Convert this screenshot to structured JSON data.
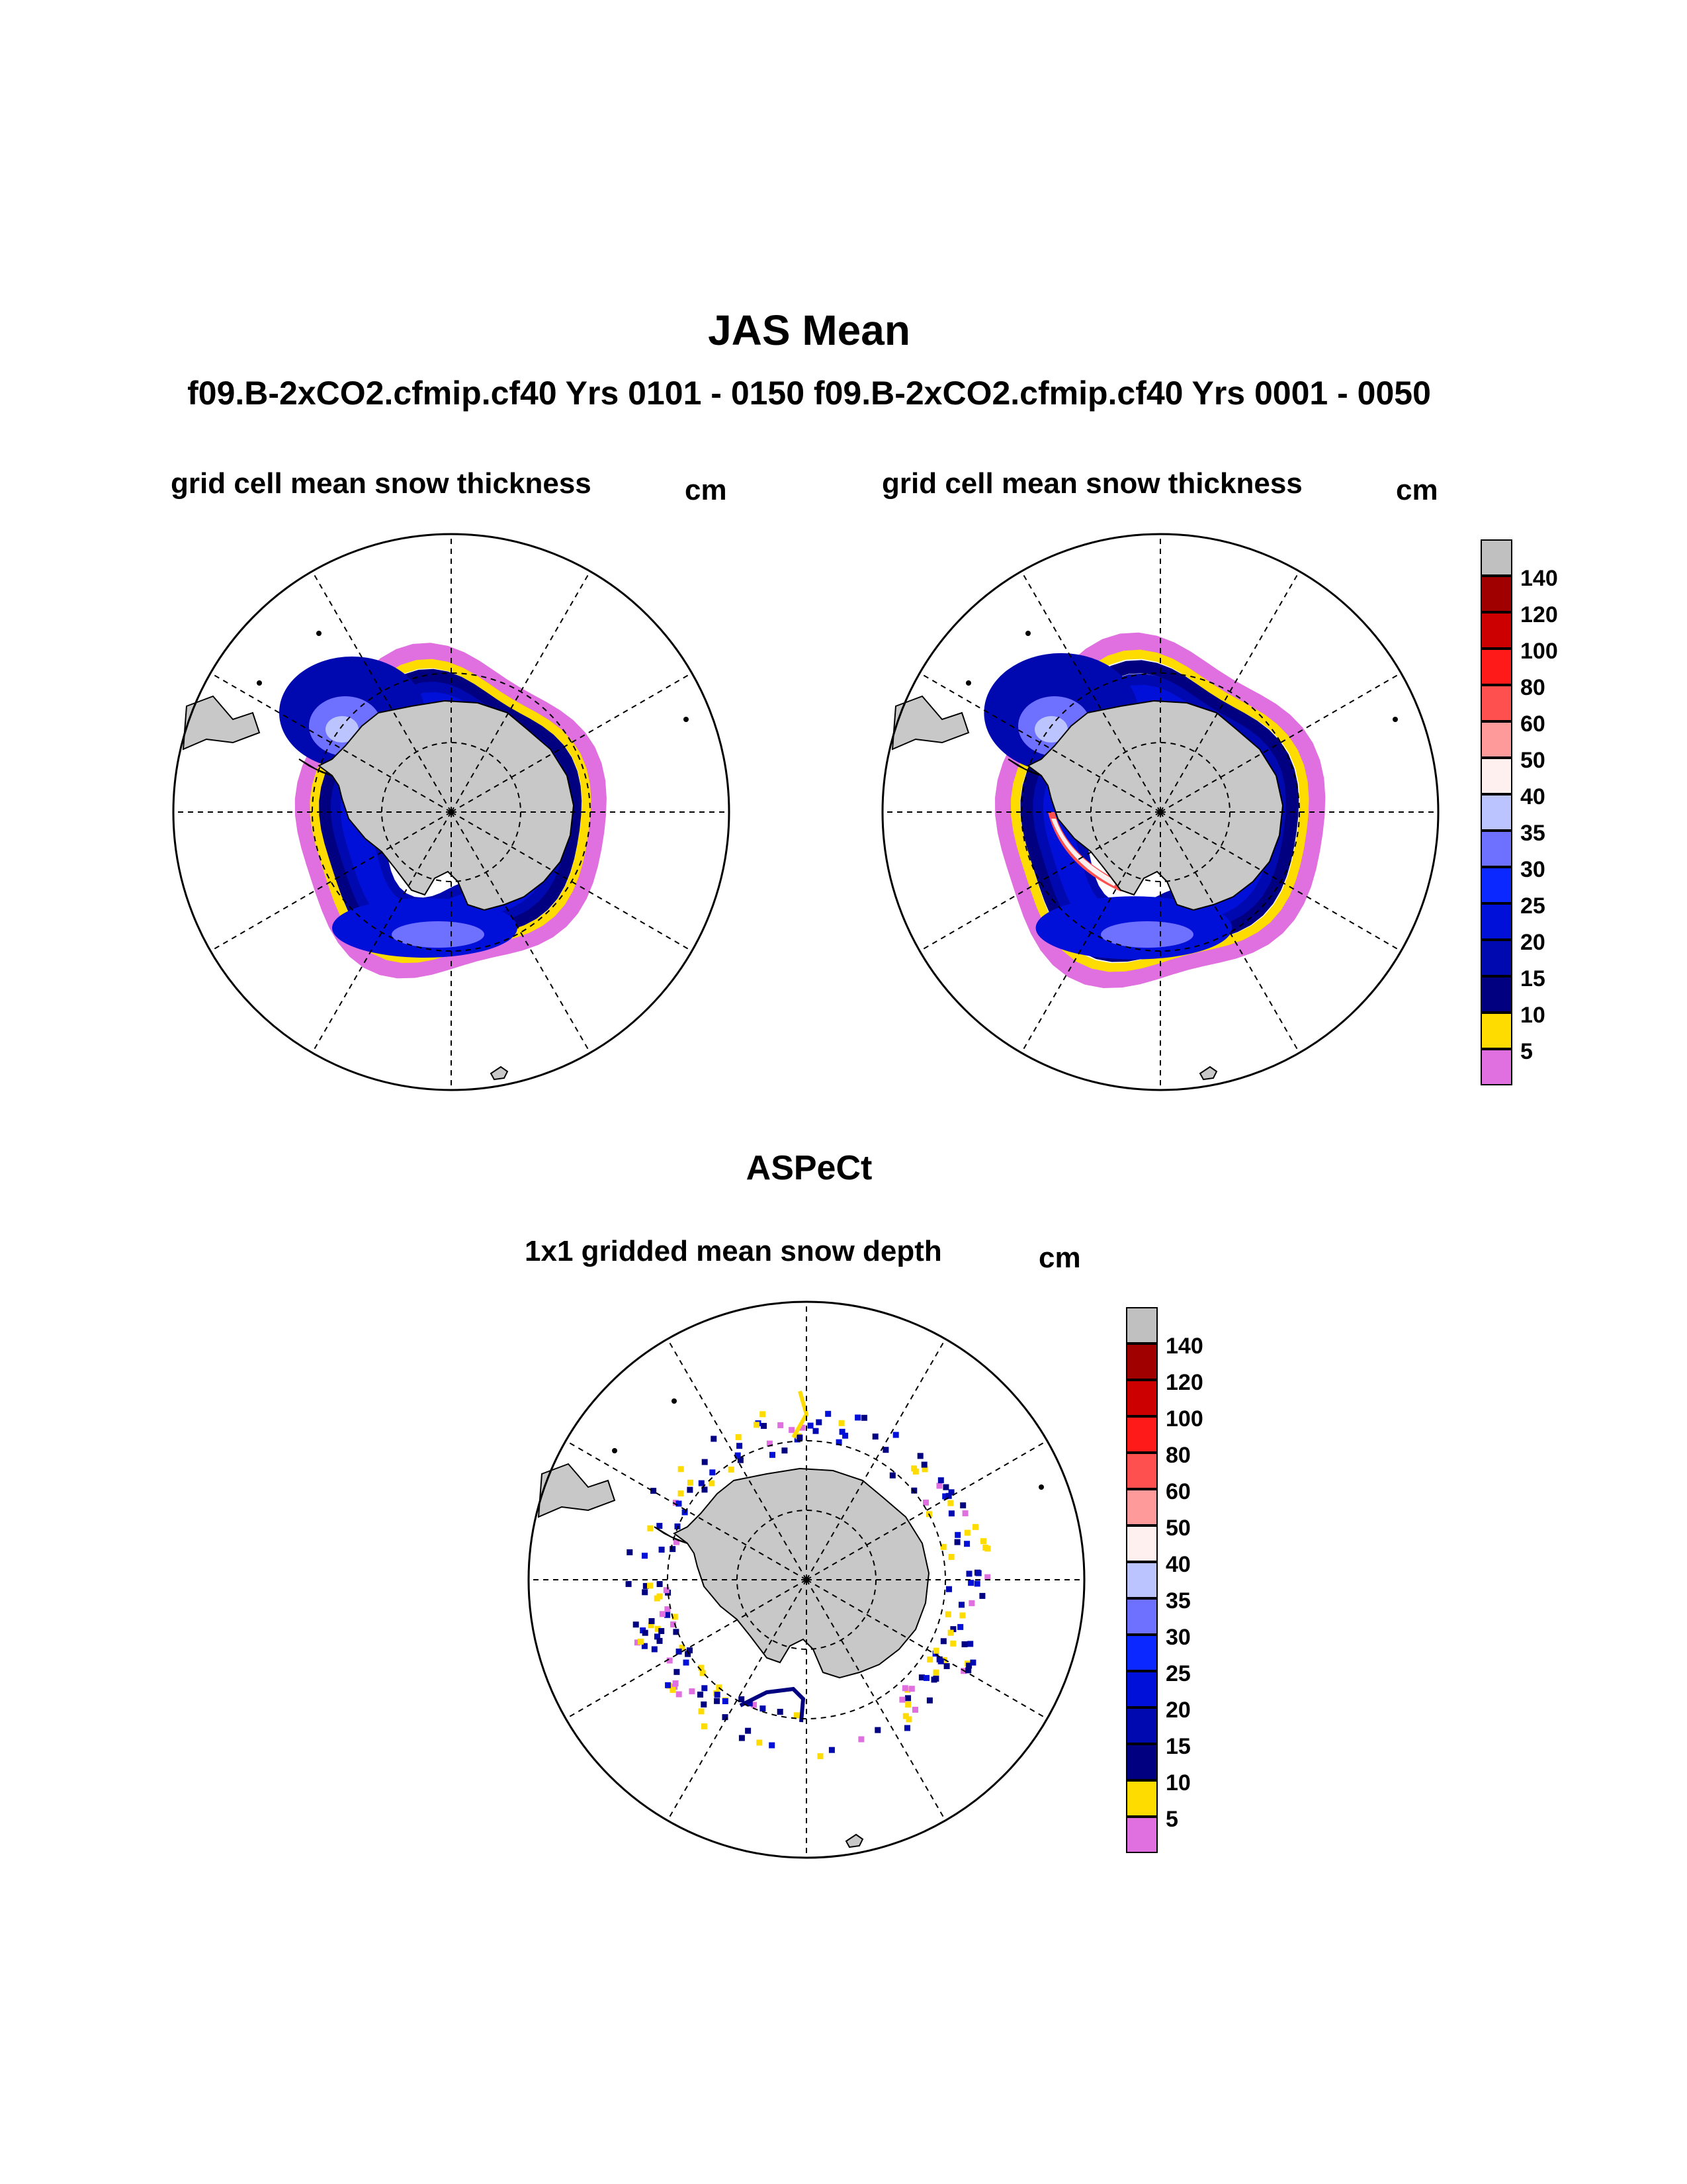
{
  "title": "JAS Mean",
  "subtitle": "f09.B-2xCO2.cfmip.cf40  Yrs 0101 - 0150 f09.B-2xCO2.cfmip.cf40  Yrs 0001 - 0050",
  "panels": [
    {
      "title": "grid cell mean snow thickness",
      "units": "cm"
    },
    {
      "title": "grid cell mean snow thickness",
      "units": "cm"
    }
  ],
  "observation_title": "ASPeCt",
  "observation_panel": {
    "title": "1x1 gridded mean snow depth",
    "units": "cm"
  },
  "colorbar": {
    "labels": [
      "140",
      "120",
      "100",
      "80",
      "60",
      "50",
      "40",
      "35",
      "30",
      "25",
      "20",
      "15",
      "10",
      "5"
    ],
    "colors": [
      "#c0c0c0",
      "#a00000",
      "#cc0000",
      "#ff1a1a",
      "#ff5050",
      "#ff9a9a",
      "#fff0f0",
      "#bcc4ff",
      "#6e70ff",
      "#0a28ff",
      "#0010d8",
      "#0008b0",
      "#000080",
      "#ffdc00",
      "#e070e0"
    ]
  },
  "colors": {
    "land": "#c8c8c8",
    "outline": "#000000",
    "grid": "#000000"
  }
}
